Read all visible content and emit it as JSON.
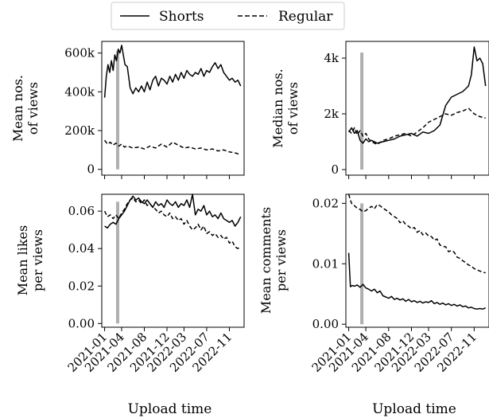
{
  "chart_data": {
    "type": "line",
    "legend": {
      "position": "top-center",
      "entries": [
        {
          "name": "Shorts",
          "style": "solid"
        },
        {
          "name": "Regular",
          "style": "dashed"
        }
      ]
    },
    "shared_xlabel": "Upload time",
    "x_tick_labels": [
      "2021-01",
      "2021-04",
      "2021-08",
      "2021-12",
      "2022-03",
      "2022-07",
      "2022-11"
    ],
    "x_tick_months": [
      0,
      3,
      7,
      11,
      14,
      18,
      22
    ],
    "x_domain_months": [
      -0.5,
      24.6
    ],
    "marker_month": 2.3,
    "marker_color": "#b0b0b0",
    "panels": [
      {
        "ylabel": [
          "Mean nos.",
          "of views"
        ],
        "ylim": [
          -30000,
          660000
        ],
        "yticks": [
          0,
          200000,
          400000,
          600000
        ],
        "ytick_labels": [
          "0",
          "200k",
          "400k",
          "600k"
        ],
        "marker_range": [
          0,
          610000
        ],
        "show_xticklabels": false,
        "series": [
          {
            "name": "Shorts",
            "x": [
              0,
              0.3,
              0.6,
              0.9,
              1.2,
              1.5,
              1.8,
              2.1,
              2.4,
              2.7,
              3.0,
              3.3,
              3.6,
              4.0,
              4.5,
              5.0,
              5.5,
              6.0,
              6.5,
              7.0,
              7.5,
              8.0,
              8.5,
              9.0,
              9.5,
              10.0,
              10.5,
              11.0,
              11.5,
              12.0,
              12.5,
              13.0,
              13.5,
              14.0,
              14.5,
              15.0,
              15.5,
              16.0,
              16.5,
              17.0,
              17.5,
              18.0,
              18.5,
              19.0,
              19.5,
              20.0,
              20.5,
              21.0,
              21.5,
              22.0,
              22.5,
              23.0,
              23.5,
              24.0
            ],
            "y": [
              370000,
              480000,
              540000,
              500000,
              560000,
              510000,
              590000,
              560000,
              620000,
              600000,
              640000,
              590000,
              540000,
              530000,
              420000,
              390000,
              420000,
              400000,
              430000,
              400000,
              450000,
              410000,
              460000,
              480000,
              430000,
              470000,
              460000,
              440000,
              480000,
              450000,
              490000,
              460000,
              500000,
              470000,
              510000,
              490000,
              480000,
              500000,
              490000,
              520000,
              480000,
              510000,
              500000,
              530000,
              550000,
              520000,
              540000,
              500000,
              480000,
              460000,
              470000,
              450000,
              460000,
              430000
            ]
          },
          {
            "name": "Regular",
            "x": [
              0,
              0.5,
              1.0,
              1.5,
              2.0,
              2.5,
              3.0,
              3.5,
              4.0,
              5.0,
              6.0,
              7.0,
              8.0,
              9.0,
              10.0,
              11.0,
              12.0,
              13.0,
              14.0,
              15.0,
              16.0,
              17.0,
              18.0,
              19.0,
              20.0,
              21.0,
              22.0,
              23.0,
              24.0
            ],
            "y": [
              150000,
              130000,
              140000,
              125000,
              135000,
              120000,
              130000,
              115000,
              120000,
              110000,
              115000,
              105000,
              120000,
              110000,
              130000,
              115000,
              140000,
              125000,
              110000,
              115000,
              105000,
              110000,
              100000,
              105000,
              95000,
              100000,
              90000,
              85000,
              75000
            ]
          }
        ]
      },
      {
        "ylabel": [
          "Median nos.",
          "of views"
        ],
        "ylim": [
          -200,
          4600
        ],
        "yticks": [
          0,
          2000,
          4000
        ],
        "ytick_labels": [
          "0",
          "2k",
          "4k"
        ],
        "marker_range": [
          0,
          4200
        ],
        "show_xticklabels": false,
        "series": [
          {
            "name": "Shorts",
            "x": [
              0,
              0.5,
              1.0,
              1.5,
              2.0,
              2.5,
              3.0,
              3.5,
              4.0,
              5.0,
              6.0,
              7.0,
              8.0,
              9.0,
              10.0,
              11.0,
              12.0,
              13.0,
              14.0,
              15.0,
              16.0,
              17.0,
              18.0,
              19.0,
              20.0,
              20.5,
              21.0,
              21.5,
              22.0,
              22.5,
              23.0,
              23.5,
              24.0
            ],
            "y": [
              1350,
              1500,
              1300,
              1400,
              1050,
              950,
              1100,
              1000,
              1050,
              950,
              1000,
              1050,
              1100,
              1200,
              1250,
              1300,
              1200,
              1350,
              1300,
              1400,
              1600,
              2300,
              2600,
              2700,
              2800,
              2900,
              3000,
              3400,
              4400,
              3900,
              4000,
              3800,
              3000
            ]
          },
          {
            "name": "Regular",
            "x": [
              0,
              0.5,
              1.0,
              1.5,
              2.0,
              2.5,
              3.0,
              3.5,
              4.0,
              5.0,
              6.0,
              7.0,
              8.0,
              9.0,
              10.0,
              11.0,
              12.0,
              13.0,
              14.0,
              15.0,
              16.0,
              17.0,
              18.0,
              19.0,
              20.0,
              21.0,
              22.0,
              23.0,
              24.0
            ],
            "y": [
              1400,
              1300,
              1500,
              1250,
              1400,
              1200,
              1300,
              1100,
              1000,
              900,
              1050,
              1100,
              1200,
              1250,
              1300,
              1200,
              1350,
              1500,
              1700,
              1800,
              1900,
              2000,
              1950,
              2050,
              2100,
              2200,
              2000,
              1900,
              1850
            ]
          }
        ]
      },
      {
        "ylabel": [
          "Mean likes",
          "per views"
        ],
        "ylim": [
          -0.002,
          0.069
        ],
        "yticks": [
          0,
          0.02,
          0.04,
          0.06
        ],
        "ytick_labels": [
          "0.00",
          "0.02",
          "0.04",
          "0.06"
        ],
        "marker_range": [
          0,
          0.065
        ],
        "show_xticklabels": true,
        "series": [
          {
            "name": "Shorts",
            "x": [
              0,
              0.5,
              1.0,
              1.5,
              2.0,
              2.5,
              3.0,
              3.5,
              4.0,
              4.5,
              5.0,
              5.5,
              6.0,
              6.5,
              7.0,
              7.5,
              8.0,
              8.5,
              9.0,
              9.5,
              10.0,
              10.5,
              11.0,
              11.5,
              12.0,
              12.5,
              13.0,
              13.5,
              14.0,
              14.5,
              15.0,
              15.5,
              16.0,
              16.5,
              17.0,
              17.5,
              18.0,
              18.5,
              19.0,
              19.5,
              20.0,
              20.5,
              21.0,
              21.5,
              22.0,
              22.5,
              23.0,
              23.5,
              24.0
            ],
            "y": [
              0.052,
              0.051,
              0.053,
              0.054,
              0.053,
              0.056,
              0.058,
              0.06,
              0.063,
              0.066,
              0.068,
              0.066,
              0.067,
              0.065,
              0.064,
              0.066,
              0.064,
              0.062,
              0.065,
              0.063,
              0.064,
              0.062,
              0.066,
              0.064,
              0.063,
              0.065,
              0.062,
              0.064,
              0.063,
              0.066,
              0.062,
              0.069,
              0.058,
              0.061,
              0.06,
              0.063,
              0.058,
              0.06,
              0.057,
              0.058,
              0.056,
              0.059,
              0.056,
              0.055,
              0.054,
              0.055,
              0.052,
              0.054,
              0.057
            ]
          },
          {
            "name": "Regular",
            "x": [
              0,
              0.5,
              1.0,
              1.5,
              2.0,
              2.5,
              3.0,
              3.5,
              4.0,
              4.5,
              5.0,
              5.5,
              6.0,
              6.5,
              7.0,
              7.5,
              8.0,
              8.5,
              9.0,
              9.5,
              10.0,
              10.5,
              11.0,
              11.5,
              12.0,
              12.5,
              13.0,
              13.5,
              14.0,
              14.5,
              15.0,
              15.5,
              16.0,
              16.5,
              17.0,
              17.5,
              18.0,
              18.5,
              19.0,
              19.5,
              20.0,
              20.5,
              21.0,
              21.5,
              22.0,
              22.5,
              23.0,
              23.5,
              24.0
            ],
            "y": [
              0.06,
              0.057,
              0.058,
              0.056,
              0.058,
              0.056,
              0.059,
              0.061,
              0.064,
              0.066,
              0.067,
              0.065,
              0.066,
              0.064,
              0.066,
              0.063,
              0.064,
              0.062,
              0.061,
              0.059,
              0.06,
              0.058,
              0.057,
              0.059,
              0.056,
              0.057,
              0.055,
              0.056,
              0.053,
              0.055,
              0.052,
              0.05,
              0.051,
              0.053,
              0.05,
              0.052,
              0.048,
              0.049,
              0.047,
              0.048,
              0.046,
              0.047,
              0.045,
              0.046,
              0.043,
              0.044,
              0.041,
              0.04,
              0.041
            ]
          }
        ]
      },
      {
        "ylabel": [
          "Mean comments",
          "per views"
        ],
        "ylim": [
          -0.0005,
          0.0215
        ],
        "yticks": [
          0,
          0.01,
          0.02
        ],
        "ytick_labels": [
          "0.00",
          "0.01",
          "0.02"
        ],
        "marker_range": [
          0,
          0.02
        ],
        "show_xticklabels": true,
        "series": [
          {
            "name": "Shorts",
            "x": [
              0,
              0.3,
              0.6,
              1.0,
              1.5,
              2.0,
              2.5,
              3.0,
              3.5,
              4.0,
              4.5,
              5.0,
              5.5,
              6.0,
              6.5,
              7.0,
              7.5,
              8.0,
              8.5,
              9.0,
              9.5,
              10.0,
              10.5,
              11.0,
              11.5,
              12.0,
              12.5,
              13.0,
              13.5,
              14.0,
              14.5,
              15.0,
              15.5,
              16.0,
              16.5,
              17.0,
              17.5,
              18.0,
              18.5,
              19.0,
              19.5,
              20.0,
              20.5,
              21.0,
              21.5,
              22.0,
              22.5,
              23.0,
              23.5,
              24.0
            ],
            "y": [
              0.0118,
              0.0062,
              0.0064,
              0.0063,
              0.0065,
              0.0061,
              0.0066,
              0.006,
              0.0058,
              0.0055,
              0.0058,
              0.0052,
              0.0055,
              0.0047,
              0.0045,
              0.0043,
              0.0046,
              0.0041,
              0.0043,
              0.004,
              0.0042,
              0.0038,
              0.0041,
              0.0037,
              0.0039,
              0.0036,
              0.0038,
              0.0035,
              0.0037,
              0.0036,
              0.0039,
              0.0034,
              0.0036,
              0.0033,
              0.0035,
              0.0032,
              0.0034,
              0.0031,
              0.0033,
              0.003,
              0.0032,
              0.0029,
              0.003,
              0.0027,
              0.0028,
              0.0026,
              0.0025,
              0.0026,
              0.0025,
              0.0027
            ]
          },
          {
            "name": "Regular",
            "x": [
              0,
              0.3,
              0.6,
              1.0,
              1.5,
              2.0,
              2.5,
              3.0,
              3.5,
              4.0,
              4.5,
              5.0,
              5.5,
              6.0,
              6.5,
              7.0,
              7.5,
              8.0,
              8.5,
              9.0,
              9.5,
              10.0,
              10.5,
              11.0,
              11.5,
              12.0,
              12.5,
              13.0,
              13.5,
              14.0,
              14.5,
              15.0,
              15.5,
              16.0,
              16.5,
              17.0,
              17.5,
              18.0,
              18.5,
              19.0,
              19.5,
              20.0,
              20.5,
              21.0,
              21.5,
              22.0,
              22.5,
              23.0,
              23.5,
              24.0
            ],
            "y": [
              0.0215,
              0.0205,
              0.0198,
              0.0196,
              0.0192,
              0.019,
              0.0186,
              0.0188,
              0.0192,
              0.0195,
              0.0191,
              0.0198,
              0.0196,
              0.0192,
              0.0189,
              0.0186,
              0.0181,
              0.0178,
              0.0175,
              0.0168,
              0.0171,
              0.0165,
              0.0162,
              0.0158,
              0.016,
              0.0152,
              0.0155,
              0.0148,
              0.0151,
              0.0146,
              0.0145,
              0.0139,
              0.0141,
              0.0131,
              0.0129,
              0.0128,
              0.012,
              0.0122,
              0.0119,
              0.0111,
              0.0109,
              0.0105,
              0.0102,
              0.0098,
              0.0096,
              0.0092,
              0.009,
              0.0088,
              0.0086,
              0.0085
            ]
          }
        ]
      }
    ]
  }
}
